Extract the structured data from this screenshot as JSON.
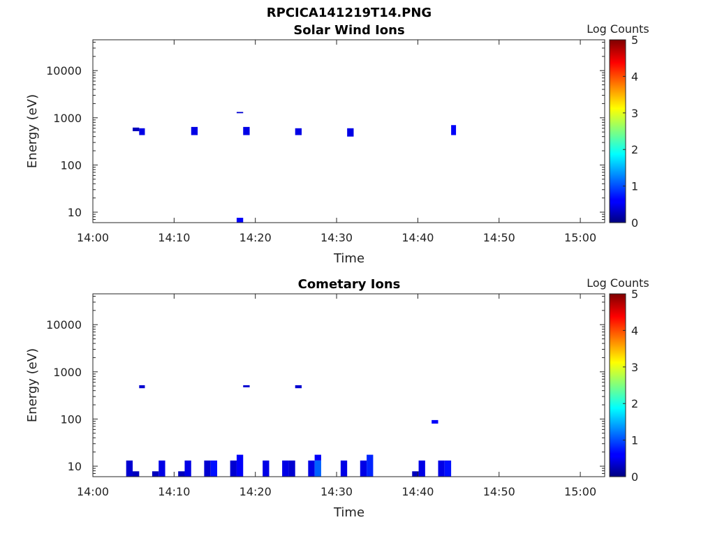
{
  "figure_title": "RPCICA141219T14.PNG",
  "colorbar": {
    "label": "Log Counts",
    "min": 0,
    "max": 5,
    "ticks": [
      "0",
      "1",
      "2",
      "3",
      "4",
      "5"
    ]
  },
  "chart_data": [
    {
      "type": "heatmap",
      "title": "Solar Wind Ions",
      "xlabel": "Time",
      "ylabel": "Energy (eV)",
      "x_ticks": [
        "14:00",
        "14:10",
        "14:20",
        "14:30",
        "14:40",
        "14:50",
        "15:00"
      ],
      "xlim_minutes": [
        0,
        63
      ],
      "y_scale": "log",
      "y_ticks": [
        "10",
        "100",
        "1000",
        "10000"
      ],
      "ylim": [
        6,
        45000
      ],
      "blocks": [
        {
          "t0": 4.9,
          "t1": 5.7,
          "e0": 520,
          "e1": 620,
          "value": 0.3
        },
        {
          "t0": 5.7,
          "t1": 6.4,
          "e0": 430,
          "e1": 600,
          "value": 0.5
        },
        {
          "t0": 12.1,
          "t1": 12.9,
          "e0": 430,
          "e1": 640,
          "value": 0.5
        },
        {
          "t0": 17.7,
          "t1": 18.5,
          "e0": 1250,
          "e1": 1330,
          "value": 0.4
        },
        {
          "t0": 18.5,
          "t1": 19.3,
          "e0": 430,
          "e1": 640,
          "value": 0.5
        },
        {
          "t0": 24.9,
          "t1": 25.7,
          "e0": 430,
          "e1": 600,
          "value": 0.5
        },
        {
          "t0": 31.3,
          "t1": 32.1,
          "e0": 400,
          "e1": 600,
          "value": 0.5
        },
        {
          "t0": 44.1,
          "t1": 44.7,
          "e0": 430,
          "e1": 700,
          "value": 0.6
        },
        {
          "t0": 17.7,
          "t1": 18.5,
          "e0": 6,
          "e1": 7.6,
          "value": 0.6
        }
      ]
    },
    {
      "type": "heatmap",
      "title": "Cometary Ions",
      "xlabel": "Time",
      "ylabel": "Energy (eV)",
      "x_ticks": [
        "14:00",
        "14:10",
        "14:20",
        "14:30",
        "14:40",
        "14:50",
        "15:00"
      ],
      "xlim_minutes": [
        0,
        63
      ],
      "y_scale": "log",
      "y_ticks": [
        "10",
        "100",
        "1000",
        "10000"
      ],
      "ylim": [
        6,
        45000
      ],
      "blocks": [
        {
          "t0": 5.7,
          "t1": 6.4,
          "e0": 450,
          "e1": 520,
          "value": 0.4
        },
        {
          "t0": 18.5,
          "t1": 19.3,
          "e0": 470,
          "e1": 520,
          "value": 0.4
        },
        {
          "t0": 24.9,
          "t1": 25.7,
          "e0": 450,
          "e1": 520,
          "value": 0.4
        },
        {
          "t0": 41.7,
          "t1": 42.5,
          "e0": 80,
          "e1": 95,
          "value": 0.6
        },
        {
          "t0": 4.1,
          "t1": 4.9,
          "e0": 6,
          "e1": 13.2,
          "value": 0.4
        },
        {
          "t0": 4.9,
          "t1": 5.7,
          "e0": 6,
          "e1": 7.8,
          "value": 0.3
        },
        {
          "t0": 7.3,
          "t1": 8.1,
          "e0": 6,
          "e1": 7.8,
          "value": 0.3
        },
        {
          "t0": 8.1,
          "t1": 8.9,
          "e0": 6,
          "e1": 13.2,
          "value": 0.5
        },
        {
          "t0": 10.5,
          "t1": 11.3,
          "e0": 6,
          "e1": 7.8,
          "value": 0.3
        },
        {
          "t0": 11.3,
          "t1": 12.1,
          "e0": 6,
          "e1": 13.2,
          "value": 0.5
        },
        {
          "t0": 13.7,
          "t1": 14.5,
          "e0": 6,
          "e1": 13.2,
          "value": 0.4
        },
        {
          "t0": 14.5,
          "t1": 15.3,
          "e0": 6,
          "e1": 13.2,
          "value": 0.7
        },
        {
          "t0": 16.9,
          "t1": 17.7,
          "e0": 6,
          "e1": 13.2,
          "value": 0.4
        },
        {
          "t0": 17.7,
          "t1": 18.5,
          "e0": 6,
          "e1": 17.5,
          "value": 0.6
        },
        {
          "t0": 20.9,
          "t1": 21.7,
          "e0": 6,
          "e1": 13.2,
          "value": 0.5
        },
        {
          "t0": 23.3,
          "t1": 24.1,
          "e0": 6,
          "e1": 13.2,
          "value": 0.5
        },
        {
          "t0": 24.1,
          "t1": 24.9,
          "e0": 6,
          "e1": 13.2,
          "value": 0.4
        },
        {
          "t0": 26.5,
          "t1": 27.3,
          "e0": 6,
          "e1": 13.2,
          "value": 0.5
        },
        {
          "t0": 27.3,
          "t1": 28.1,
          "e0": 6,
          "e1": 13.2,
          "value": 1.1
        },
        {
          "t0": 27.3,
          "t1": 28.1,
          "e0": 13.2,
          "e1": 17.5,
          "value": 0.6
        },
        {
          "t0": 30.5,
          "t1": 31.3,
          "e0": 6,
          "e1": 13.2,
          "value": 0.5
        },
        {
          "t0": 32.9,
          "t1": 33.7,
          "e0": 6,
          "e1": 13.2,
          "value": 0.5
        },
        {
          "t0": 33.7,
          "t1": 34.5,
          "e0": 6,
          "e1": 17.5,
          "value": 0.8
        },
        {
          "t0": 39.3,
          "t1": 40.1,
          "e0": 6,
          "e1": 7.8,
          "value": 0.3
        },
        {
          "t0": 40.1,
          "t1": 40.9,
          "e0": 6,
          "e1": 13.2,
          "value": 0.5
        },
        {
          "t0": 42.5,
          "t1": 43.3,
          "e0": 6,
          "e1": 13.2,
          "value": 0.5
        },
        {
          "t0": 43.3,
          "t1": 44.1,
          "e0": 6,
          "e1": 13.2,
          "value": 0.7
        }
      ]
    }
  ]
}
